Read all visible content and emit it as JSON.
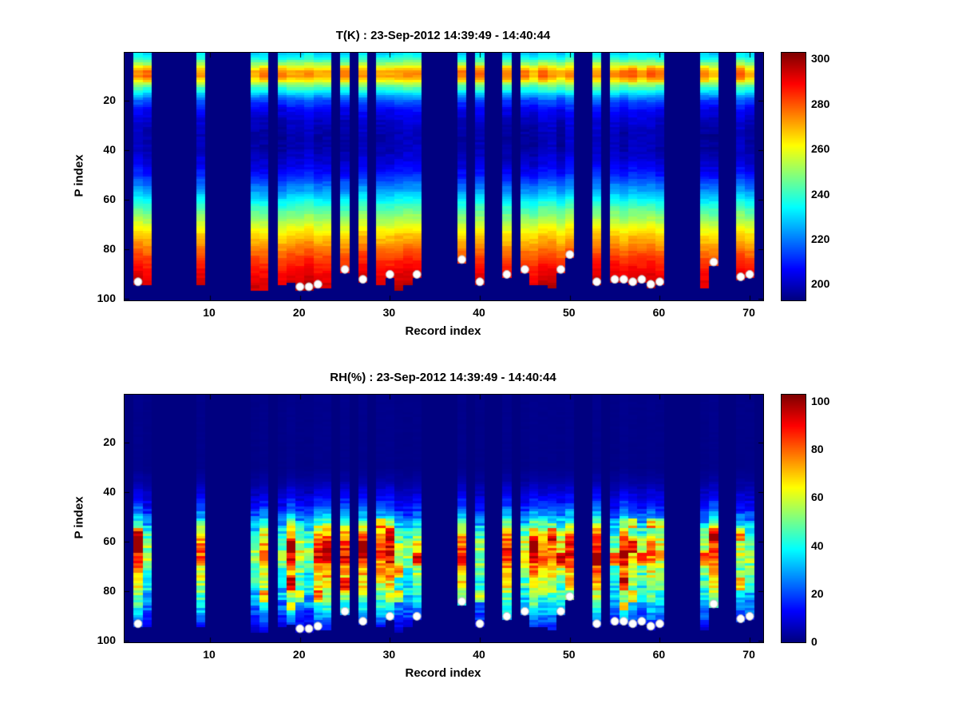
{
  "figure": {
    "background": "#ffffff"
  },
  "chart_data": [
    {
      "type": "heatmap",
      "title": "T(K) : 23-Sep-2012 14:39:49 - 14:40:44",
      "xlabel": "Record index",
      "ylabel": "P index",
      "x_ticks": [
        10,
        20,
        30,
        40,
        50,
        60,
        70
      ],
      "y_ticks": [
        20,
        40,
        60,
        80,
        100
      ],
      "x_range": [
        1,
        71
      ],
      "y_range": [
        1,
        100
      ],
      "y_reversed": true,
      "n_records": 71,
      "n_levels": 100,
      "colormap": "jet",
      "cmin": 193,
      "cmax": 303,
      "colorbar_ticks": [
        200,
        220,
        240,
        260,
        280,
        300
      ],
      "profile": [
        [
          1,
          231
        ],
        [
          3,
          238
        ],
        [
          6,
          258
        ],
        [
          8,
          271
        ],
        [
          10,
          272
        ],
        [
          12,
          260
        ],
        [
          14,
          246
        ],
        [
          16,
          235
        ],
        [
          18,
          224
        ],
        [
          20,
          215
        ],
        [
          24,
          206
        ],
        [
          28,
          201
        ],
        [
          34,
          198
        ],
        [
          40,
          199
        ],
        [
          45,
          203
        ],
        [
          50,
          210
        ],
        [
          55,
          221
        ],
        [
          60,
          234
        ],
        [
          65,
          246
        ],
        [
          70,
          257
        ],
        [
          75,
          268
        ],
        [
          80,
          277
        ],
        [
          85,
          285
        ],
        [
          90,
          291
        ],
        [
          95,
          295
        ],
        [
          100,
          297
        ]
      ],
      "missing_records": [
        1,
        4,
        5,
        6,
        7,
        8,
        10,
        11,
        12,
        13,
        14,
        17,
        24,
        26,
        28,
        34,
        35,
        36,
        37,
        39,
        41,
        42,
        44,
        51,
        52,
        54,
        61,
        62,
        63,
        64,
        67,
        68,
        71
      ],
      "surface_dots": [
        [
          2,
          93
        ],
        [
          20,
          95
        ],
        [
          21,
          95
        ],
        [
          22,
          94
        ],
        [
          25,
          88
        ],
        [
          27,
          92
        ],
        [
          30,
          90
        ],
        [
          33,
          90
        ],
        [
          38,
          84
        ],
        [
          40,
          93
        ],
        [
          43,
          90
        ],
        [
          45,
          88
        ],
        [
          49,
          88
        ],
        [
          50,
          82
        ],
        [
          53,
          93
        ],
        [
          55,
          92
        ],
        [
          56,
          92
        ],
        [
          57,
          93
        ],
        [
          58,
          92
        ],
        [
          59,
          94
        ],
        [
          60,
          93
        ],
        [
          66,
          85
        ],
        [
          69,
          91
        ],
        [
          70,
          90
        ]
      ]
    },
    {
      "type": "heatmap",
      "title": "RH(%) : 23-Sep-2012 14:39:49 - 14:40:44",
      "xlabel": "Record index",
      "ylabel": "P index",
      "x_ticks": [
        10,
        20,
        30,
        40,
        50,
        60,
        70
      ],
      "y_ticks": [
        20,
        40,
        60,
        80,
        100
      ],
      "x_range": [
        1,
        71
      ],
      "y_range": [
        1,
        100
      ],
      "y_reversed": true,
      "n_records": 71,
      "n_levels": 100,
      "colormap": "jet",
      "cmin": 0,
      "cmax": 103,
      "colorbar_ticks": [
        0,
        20,
        40,
        60,
        80,
        100
      ],
      "profile": [
        [
          1,
          1
        ],
        [
          30,
          1
        ],
        [
          35,
          3
        ],
        [
          40,
          8
        ],
        [
          45,
          15
        ],
        [
          50,
          28
        ],
        [
          54,
          45
        ],
        [
          58,
          62
        ],
        [
          62,
          70
        ],
        [
          66,
          72
        ],
        [
          70,
          62
        ],
        [
          74,
          55
        ],
        [
          78,
          50
        ],
        [
          82,
          42
        ],
        [
          86,
          33
        ],
        [
          90,
          24
        ],
        [
          94,
          14
        ],
        [
          100,
          4
        ]
      ],
      "missing_records": [
        1,
        4,
        5,
        6,
        7,
        8,
        10,
        11,
        12,
        13,
        14,
        17,
        24,
        26,
        28,
        34,
        35,
        36,
        37,
        39,
        41,
        42,
        44,
        51,
        52,
        54,
        61,
        62,
        63,
        64,
        67,
        68,
        71
      ],
      "surface_dots": [
        [
          2,
          93
        ],
        [
          20,
          95
        ],
        [
          21,
          95
        ],
        [
          22,
          94
        ],
        [
          25,
          88
        ],
        [
          27,
          92
        ],
        [
          30,
          90
        ],
        [
          33,
          90
        ],
        [
          38,
          84
        ],
        [
          40,
          93
        ],
        [
          43,
          90
        ],
        [
          45,
          88
        ],
        [
          49,
          88
        ],
        [
          50,
          82
        ],
        [
          53,
          93
        ],
        [
          55,
          92
        ],
        [
          56,
          92
        ],
        [
          57,
          93
        ],
        [
          58,
          92
        ],
        [
          59,
          94
        ],
        [
          60,
          93
        ],
        [
          66,
          85
        ],
        [
          69,
          91
        ],
        [
          70,
          90
        ]
      ]
    }
  ]
}
